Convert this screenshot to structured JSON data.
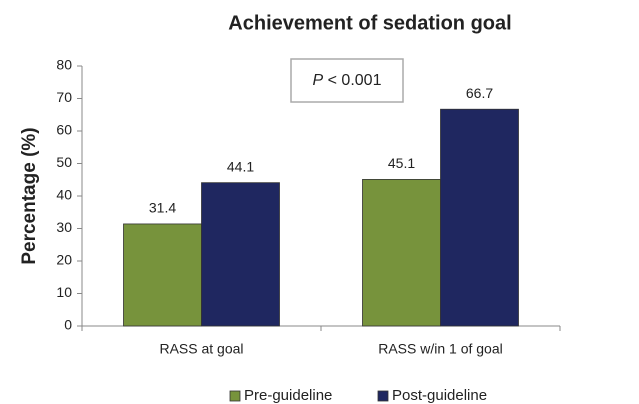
{
  "chart_data": {
    "type": "bar",
    "title": "Achievement of sedation goal",
    "ylabel": "Percentage (%)",
    "annotation": {
      "variable": "P",
      "text": "< 0.001"
    },
    "categories": [
      "RASS at goal",
      "RASS w/in 1 of goal"
    ],
    "series": [
      {
        "name": "Pre-guideline",
        "color": "#77933c",
        "values": [
          31.4,
          45.1
        ]
      },
      {
        "name": "Post-guideline",
        "color": "#1f2760",
        "values": [
          44.1,
          66.7
        ]
      }
    ],
    "ylim": [
      0,
      80
    ],
    "yticks": [
      0,
      10,
      20,
      30,
      40,
      50,
      60,
      70,
      80
    ],
    "legend": "bottom"
  }
}
